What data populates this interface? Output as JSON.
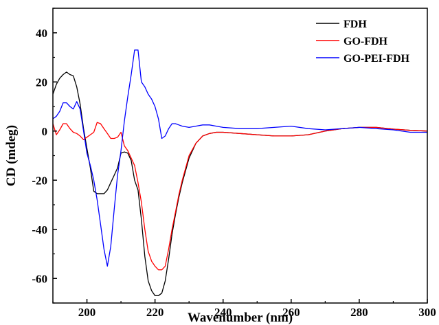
{
  "chart_data": {
    "type": "line",
    "title": "",
    "xlabel": "Wavenumber (nm)",
    "ylabel": "CD (mdeg)",
    "xlim": [
      190,
      300
    ],
    "ylim": [
      -70,
      50
    ],
    "xticks": [
      200,
      220,
      240,
      260,
      280,
      300
    ],
    "yticks": [
      -60,
      -40,
      -20,
      0,
      20,
      40
    ],
    "grid": false,
    "legend_position": "top-right",
    "series": [
      {
        "name": "FDH",
        "color": "#000000",
        "x": [
          190,
          191,
          192,
          193,
          194,
          195,
          196,
          197,
          198,
          199,
          200,
          201,
          202,
          203,
          204,
          205,
          206,
          207,
          208,
          209,
          210,
          211,
          212,
          213,
          214,
          215,
          216,
          217,
          218,
          219,
          220,
          221,
          222,
          223,
          224,
          225,
          226,
          227,
          228,
          230,
          232,
          234,
          236,
          238,
          240,
          245,
          250,
          255,
          260,
          265,
          270,
          275,
          280,
          285,
          290,
          295,
          300
        ],
        "y": [
          15,
          19,
          21.5,
          23,
          24,
          23,
          22.5,
          18,
          11,
          1,
          -7,
          -15,
          -24.5,
          -25.5,
          -25.5,
          -25.5,
          -24,
          -21,
          -18,
          -15,
          -9,
          -8.5,
          -9,
          -12,
          -20,
          -24,
          -36,
          -51,
          -61,
          -65,
          -67,
          -67,
          -66,
          -61,
          -52,
          -42,
          -34,
          -27,
          -21,
          -11,
          -5,
          -2,
          -1,
          -0.5,
          -0.5,
          -1,
          -1.5,
          -2,
          -2,
          -1.5,
          0,
          1,
          1.5,
          1.5,
          0.8,
          0.3,
          0
        ]
      },
      {
        "name": "GO-FDH",
        "color": "#ff0000",
        "x": [
          190,
          191,
          192,
          193,
          194,
          195,
          196,
          197,
          198,
          199,
          200,
          201,
          202,
          203,
          204,
          205,
          206,
          207,
          208,
          209,
          210,
          211,
          212,
          213,
          214,
          215,
          216,
          217,
          218,
          219,
          220,
          221,
          222,
          223,
          224,
          225,
          226,
          227,
          228,
          230,
          232,
          234,
          236,
          238,
          240,
          245,
          250,
          255,
          260,
          265,
          270,
          275,
          280,
          285,
          290,
          295,
          300
        ],
        "y": [
          3,
          -1.5,
          0.5,
          3,
          3,
          1,
          -0.5,
          -1,
          -2,
          -3.5,
          -2.5,
          -1.5,
          -0.5,
          3.5,
          3,
          1,
          -1,
          -3,
          -3,
          -2.5,
          -0.5,
          -6,
          -8,
          -11,
          -14,
          -21,
          -29,
          -40,
          -49,
          -53,
          -55,
          -56.5,
          -56.5,
          -55,
          -48,
          -40,
          -33,
          -26,
          -20,
          -10,
          -5,
          -2,
          -1,
          -0.5,
          -0.5,
          -1,
          -1.5,
          -2,
          -2,
          -1.5,
          0,
          1,
          1.5,
          1.5,
          0.8,
          0.3,
          0
        ]
      },
      {
        "name": "GO-PEI-FDH",
        "color": "#0000ff",
        "x": [
          190,
          191,
          192,
          193,
          194,
          195,
          196,
          197,
          198,
          199,
          200,
          201,
          202,
          203,
          204,
          205,
          206,
          207,
          208,
          209,
          210,
          211,
          212,
          213,
          214,
          215,
          216,
          217,
          218,
          219,
          220,
          221,
          222,
          223,
          224,
          225,
          226,
          227,
          228,
          230,
          232,
          234,
          236,
          238,
          240,
          245,
          250,
          255,
          260,
          265,
          270,
          275,
          280,
          285,
          290,
          295,
          300
        ],
        "y": [
          5,
          6,
          8,
          11.5,
          11.5,
          10,
          9,
          12,
          9,
          0,
          -9,
          -14,
          -20,
          -28,
          -38,
          -48,
          -55,
          -47,
          -32,
          -18,
          -8,
          4,
          14,
          23,
          33,
          33,
          20,
          18,
          15,
          13,
          10,
          5,
          -3,
          -2,
          1,
          3,
          3,
          2.5,
          2,
          1.5,
          2,
          2.5,
          2.5,
          2,
          1.5,
          1,
          1,
          1.5,
          2,
          1,
          0.5,
          1,
          1.5,
          1,
          0.5,
          -0.5,
          -0.5
        ]
      }
    ]
  }
}
